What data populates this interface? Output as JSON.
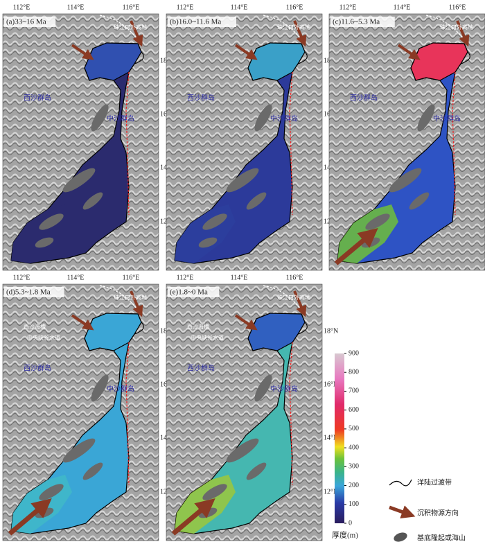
{
  "panels": [
    {
      "label": "(a)33~16 Ma",
      "places": [
        "珠江口外高地",
        "西沙群岛",
        "中沙群岛"
      ],
      "fill": "#2b2b6e",
      "top_fill": "#3050b0",
      "low_fill": "#2b2b6e"
    },
    {
      "label": "(b)16.0~11.6 Ma",
      "places": [
        "珠江口外高地",
        "西沙群岛",
        "中沙群岛"
      ],
      "fill": "#2c3a9a",
      "top_fill": "#3aa0c8",
      "low_fill": "#2d3f9e"
    },
    {
      "label": "(c)11.6~5.3 Ma",
      "places": [
        "珠江口外高地",
        "西沙群岛",
        "中沙群岛"
      ],
      "fill": "#2e53c4",
      "top_fill": "#e8345a",
      "low_fill": "#6fbf3a"
    },
    {
      "label": "(d)5.3~1.8 Ma",
      "places": [
        "珠江口外高地",
        "西沙海槽",
        "中央峡谷水道",
        "西沙群岛",
        "中沙群岛"
      ],
      "fill": "#3aa6d6",
      "top_fill": "#3aa6d6",
      "low_fill": "#41b8c8"
    },
    {
      "label": "(e)1.8~0 Ma",
      "places": [
        "珠江口外高地",
        "西沙海槽",
        "中央峡谷水道",
        "西沙群岛",
        "中沙群岛"
      ],
      "fill": "#45b7b0",
      "top_fill": "#3060c0",
      "low_fill": "#9cc83c"
    }
  ],
  "lon_labels": [
    "112°E",
    "114°E",
    "116°E"
  ],
  "lat_labels": [
    "18°N",
    "16°N",
    "14°N",
    "12°N"
  ],
  "colorbar": {
    "label": "厚度(m)",
    "range": [
      0,
      900
    ],
    "ticks": [
      0,
      100,
      200,
      300,
      400,
      500,
      600,
      700,
      800,
      900
    ]
  },
  "legend": [
    "洋陆过渡带",
    "沉积物源方向",
    "基底隆起或海山"
  ]
}
